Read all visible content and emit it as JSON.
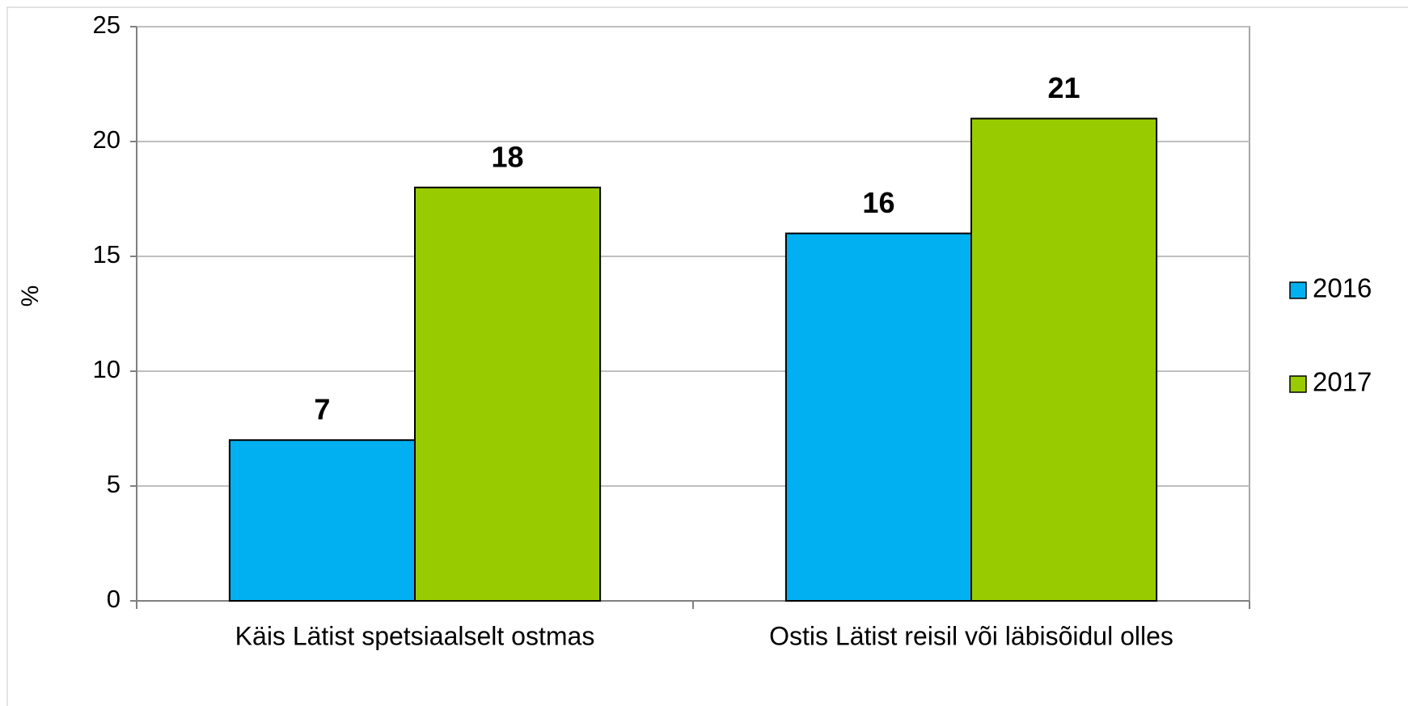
{
  "chart_data": {
    "type": "bar",
    "ylabel": "%",
    "categories": [
      "Käis Lätist spetsiaalselt ostmas",
      "Ostis Lätist reisil või läbisõidul olles"
    ],
    "series": [
      {
        "name": "2016",
        "color": "#00b0f0",
        "values": [
          7,
          16
        ]
      },
      {
        "name": "2017",
        "color": "#99cc00",
        "values": [
          18,
          21
        ]
      }
    ],
    "ylim": [
      0,
      25
    ],
    "yticks": [
      0,
      5,
      10,
      15,
      20,
      25
    ],
    "grid": true,
    "legend": "right"
  }
}
